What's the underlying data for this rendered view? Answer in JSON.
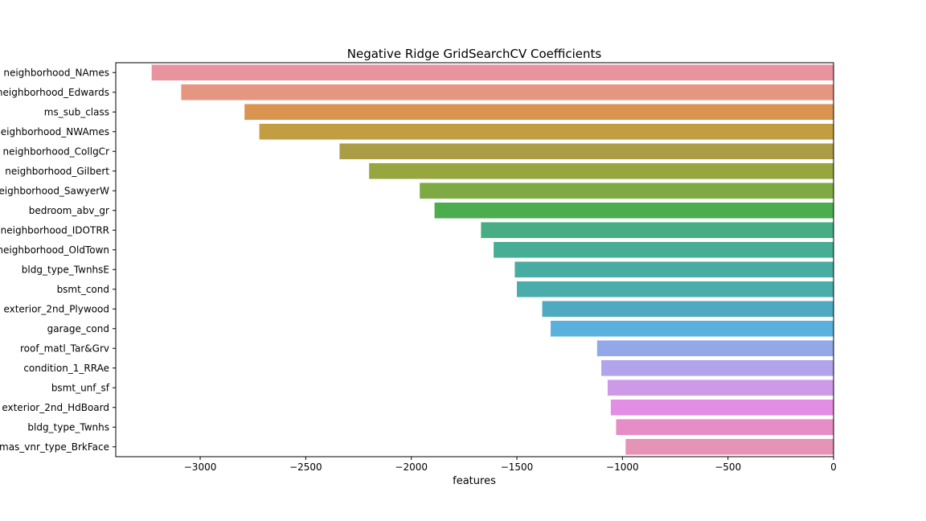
{
  "chart_data": {
    "type": "bar",
    "orientation": "horizontal",
    "title": "Negative Ridge GridSearchCV Coefficients",
    "xlabel": "features",
    "ylabel": "",
    "xlim": [
      -3400,
      0
    ],
    "xticks": [
      -3000,
      -2500,
      -2000,
      -1500,
      -1000,
      -500,
      0
    ],
    "xtick_labels": [
      "−3000",
      "−2500",
      "−2000",
      "−1500",
      "−1000",
      "−500",
      "0"
    ],
    "grid": false,
    "categories": [
      "neighborhood_NAmes",
      "neighborhood_Edwards",
      "ms_sub_class",
      "neighborhood_NWAmes",
      "neighborhood_CollgCr",
      "neighborhood_Gilbert",
      "neighborhood_SawyerW",
      "bedroom_abv_gr",
      "neighborhood_IDOTRR",
      "neighborhood_OldTown",
      "bldg_type_TwnhsE",
      "bsmt_cond",
      "exterior_2nd_Plywood",
      "garage_cond",
      "roof_matl_Tar&Grv",
      "condition_1_RRAe",
      "bsmt_unf_sf",
      "exterior_2nd_HdBoard",
      "bldg_type_Twnhs",
      "mas_vnr_type_BrkFace"
    ],
    "values": [
      -3230,
      -3090,
      -2790,
      -2720,
      -2340,
      -2200,
      -1960,
      -1890,
      -1670,
      -1610,
      -1510,
      -1500,
      -1380,
      -1340,
      -1120,
      -1100,
      -1070,
      -1055,
      -1030,
      -985
    ],
    "colors": [
      "#e8949e",
      "#e59680",
      "#d99450",
      "#c39d42",
      "#ab9d45",
      "#97a63f",
      "#7daa42",
      "#4cad4e",
      "#48ac84",
      "#47ad94",
      "#49aca2",
      "#4aadab",
      "#4eaac0",
      "#5ab1dd",
      "#92a8e8",
      "#b1a3ec",
      "#cd9ae8",
      "#e48de5",
      "#e68dc8",
      "#e693b8"
    ]
  }
}
